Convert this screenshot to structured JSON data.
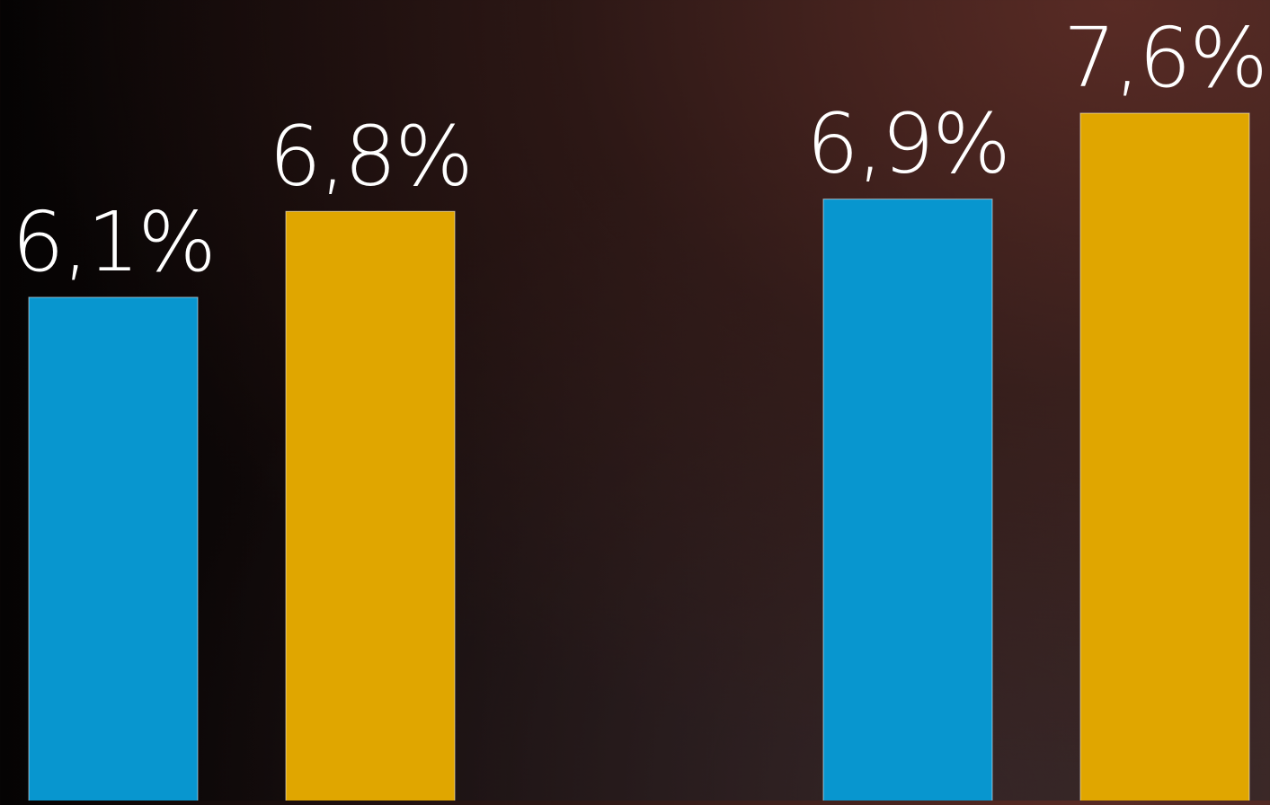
{
  "chart_data": {
    "type": "bar",
    "title": "",
    "xlabel": "",
    "ylabel": "",
    "categories": [
      "",
      ""
    ],
    "series": [
      {
        "values": [
          6.1,
          6.9
        ],
        "color": "#0896cf",
        "labels": [
          "6,1%",
          "6,9%"
        ]
      },
      {
        "values": [
          6.8,
          7.6
        ],
        "color": "#e0a600",
        "labels": [
          "6,8%",
          "7,6%"
        ]
      }
    ],
    "ylim": [
      0,
      7.6
    ],
    "grid": false,
    "legend": "none"
  }
}
